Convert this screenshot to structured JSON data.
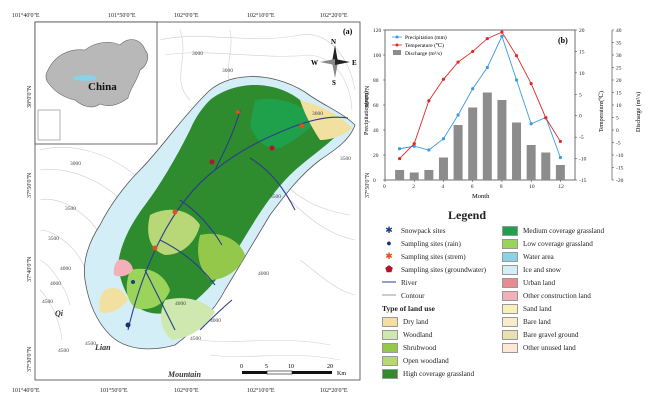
{
  "map": {
    "panel_label": "(a)",
    "inset_label": "China",
    "north": {
      "n": "N",
      "s": "S",
      "e": "E",
      "w": "W"
    },
    "top_lon": [
      "101°40'0\"E",
      "101°50'0\"E",
      "102°0'0\"E",
      "102°10'0\"E",
      "102°20'0\"E"
    ],
    "bottom_lon": [
      "101°40'0\"E",
      "101°50'0\"E",
      "102°0'0\"E",
      "102°10'0\"E",
      "102°20'0\"E"
    ],
    "lat": [
      "38°0'0\"N",
      "37°50'0\"N",
      "37°40'0\"N",
      "37°30'0\"N"
    ],
    "contours": [
      "3000",
      "3000",
      "3000",
      "3500",
      "3500",
      "4000",
      "4000",
      "4000",
      "4500",
      "4500",
      "4500",
      "4000",
      "3500",
      "3000",
      "3500",
      "4000",
      "4500"
    ],
    "place_names": [
      "Qi",
      "Lian",
      "Mountain"
    ],
    "scale": {
      "ticks": [
        "0",
        "5",
        "10",
        "20"
      ],
      "unit": "Km"
    }
  },
  "chart": {
    "panel_label": "(b)",
    "legend": [
      "Precipitation (mm)",
      "Temperature (℃)",
      "Discharge (m³/s)"
    ],
    "y_left_label": "Precipitation(mm)",
    "y_right1_label": "Temperature(℃)",
    "y_right2_label": "Discharge (m³/s)",
    "x_label": "Month",
    "x_ticks": [
      "0",
      "2",
      "4",
      "6",
      "8",
      "10",
      "12"
    ],
    "y_left_ticks": [
      "0",
      "20",
      "40",
      "60",
      "80",
      "100",
      "120"
    ],
    "y_right1_ticks": [
      "-15",
      "-10",
      "-5",
      "0",
      "5",
      "10",
      "15",
      "20"
    ],
    "y_right2_ticks": [
      "-20",
      "-15",
      "-10",
      "-5",
      "0",
      "5",
      "10",
      "15",
      "20",
      "25",
      "30",
      "35",
      "40"
    ]
  },
  "chart_data": {
    "type": "bar",
    "x": [
      1,
      2,
      3,
      4,
      5,
      6,
      7,
      8,
      9,
      10,
      11,
      12
    ],
    "xlim": [
      0,
      13
    ],
    "series": [
      {
        "name": "Precipitation (mm)",
        "type": "line",
        "axis": "left",
        "ylim": [
          0,
          120
        ],
        "values": [
          25,
          27,
          24,
          33,
          52,
          73,
          90,
          115,
          80,
          45,
          50,
          18
        ]
      },
      {
        "name": "Temperature (℃)",
        "type": "line",
        "axis": "right1",
        "ylim": [
          -15,
          20
        ],
        "values": [
          -10,
          -6.5,
          3.5,
          8.5,
          12.5,
          15,
          18,
          19.5,
          14,
          7.5,
          -0.5,
          -6
        ]
      },
      {
        "name": "Discharge (m³/s)",
        "type": "bar",
        "axis": "right2",
        "ylim": [
          -20,
          40
        ],
        "values": [
          -16,
          -17,
          -16,
          -11,
          2,
          9,
          15,
          12,
          3,
          -6,
          -9,
          -14
        ]
      }
    ],
    "colors": {
      "precipitation": "#3d9ae0",
      "temperature": "#e02a2a",
      "discharge": "#8c8c8c"
    }
  },
  "legend": {
    "title": "Legend",
    "sites": [
      {
        "label": "Snowpack sites",
        "symbol": "✱",
        "color": "#1a3c8c"
      },
      {
        "label": "Sampling sites (rain)",
        "symbol": "●",
        "color": "#1a2f78"
      },
      {
        "label": "Sampling sites (strem)",
        "symbol": "✱",
        "color": "#e0521c"
      },
      {
        "label": "Sampling sites (groundwater)",
        "symbol": "⬟",
        "color": "#b4142a"
      }
    ],
    "lines": [
      {
        "label": "River",
        "color": "#2c3e8c"
      },
      {
        "label": "Contour",
        "color": "#9a9a9a"
      }
    ],
    "land_use_title": "Type of land use",
    "land_use_left": [
      {
        "label": "Dry land",
        "color": "#f2e0a0"
      },
      {
        "label": "Woodland",
        "color": "#cfe8b0"
      },
      {
        "label": "Shrubwood",
        "color": "#94c84a"
      },
      {
        "label": "Open woodland",
        "color": "#b8d878"
      },
      {
        "label": "High coverage grassland",
        "color": "#2e8b2e"
      }
    ],
    "land_use_right": [
      {
        "label": "Medium coverage grassland",
        "color": "#1fa04a"
      },
      {
        "label": "Low coverage grassland",
        "color": "#9ad45a"
      },
      {
        "label": "Water area",
        "color": "#8ad2e8"
      },
      {
        "label": "Ice and snow",
        "color": "#d4eef8"
      },
      {
        "label": "Urban land",
        "color": "#e88a90"
      },
      {
        "label": "Other construction land",
        "color": "#f4b0b8"
      },
      {
        "label": "Sand land",
        "color": "#f8f0b8"
      },
      {
        "label": "Bare land",
        "color": "#f8eccc"
      },
      {
        "label": "Bare gravel ground",
        "color": "#e8e0b0"
      },
      {
        "label": "Other unused land",
        "color": "#fde8d8"
      }
    ]
  }
}
